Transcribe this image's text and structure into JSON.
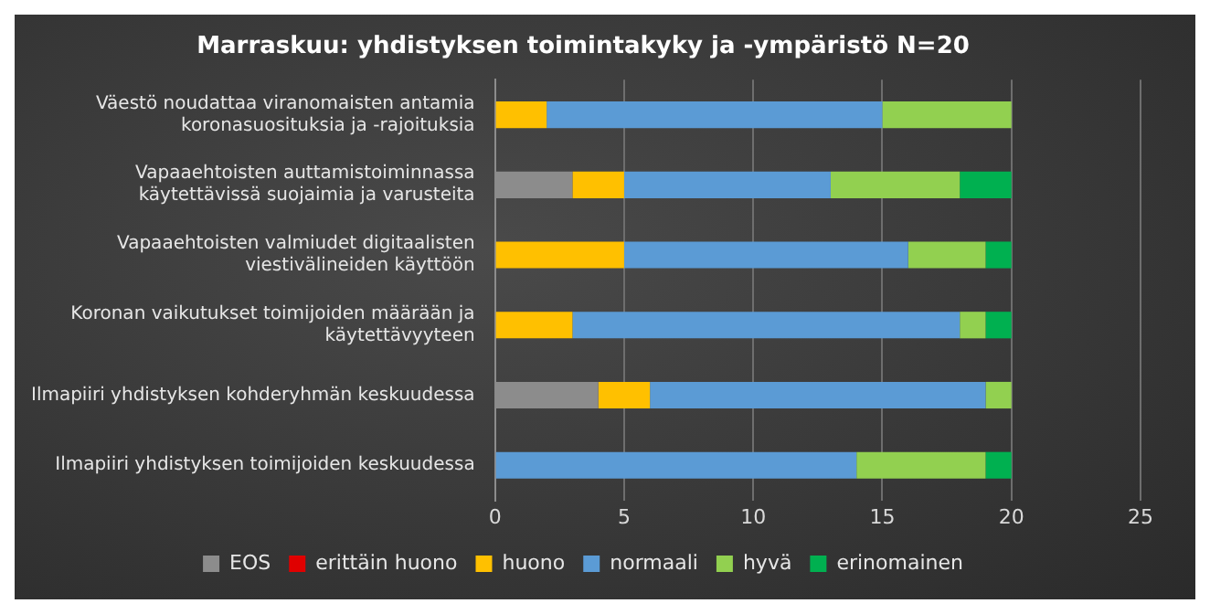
{
  "chart_data": {
    "type": "bar",
    "orientation": "horizontal",
    "stacked": true,
    "title": "Marraskuu: yhdistyksen toimintakyky ja -ympäristö N=20",
    "categories": [
      "Väestö noudattaa viranomaisten antamia koronasuosituksia ja -rajoituksia",
      "Vapaaehtoisten auttamistoiminnassa käytettävissä suojaimia ja varusteita",
      "Vapaaehtoisten valmiudet digitaalisten viestivälineiden käyttöön",
      "Koronan vaikutukset toimijoiden määrään ja käytettävyyteen",
      "Ilmapiiri yhdistyksen kohderyhmän keskuudessa",
      "Ilmapiiri yhdistyksen toimijoiden keskuudessa"
    ],
    "series": [
      {
        "name": "EOS",
        "color": "#8c8c8c",
        "values": [
          0,
          3,
          0,
          0,
          4,
          0
        ]
      },
      {
        "name": "erittäin huono",
        "color": "#e00000",
        "values": [
          0,
          0,
          0,
          0,
          0,
          0
        ]
      },
      {
        "name": "huono",
        "color": "#ffc000",
        "values": [
          2,
          2,
          5,
          3,
          2,
          0
        ]
      },
      {
        "name": "normaali",
        "color": "#5b9bd5",
        "values": [
          13,
          8,
          11,
          15,
          13,
          14
        ]
      },
      {
        "name": "hyvä",
        "color": "#92d050",
        "values": [
          5,
          5,
          3,
          1,
          1,
          5
        ]
      },
      {
        "name": "erinomainen",
        "color": "#00b050",
        "values": [
          0,
          2,
          1,
          1,
          0,
          1
        ]
      }
    ],
    "xlim": [
      0,
      25
    ],
    "xticks": [
      0,
      5,
      10,
      15,
      20,
      25
    ],
    "grid": "x",
    "legend": "bottom"
  }
}
